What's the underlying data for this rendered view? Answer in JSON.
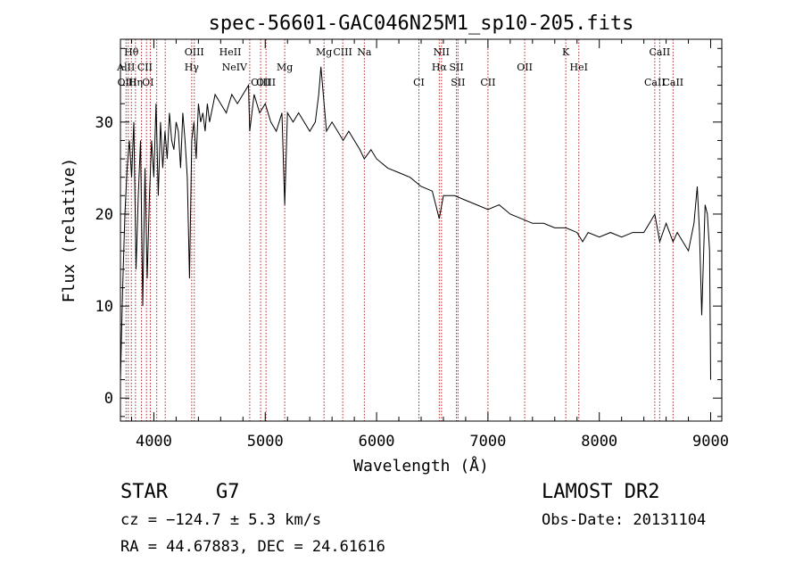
{
  "chart_data": {
    "type": "line",
    "title": "spec-56601-GAC046N25M1_sp10-205.fits",
    "xlabel": "Wavelength (Å)",
    "ylabel": "Flux (relative)",
    "xlim": [
      3700,
      9100
    ],
    "ylim": [
      -2.5,
      39
    ],
    "x_ticks": [
      4000,
      5000,
      6000,
      7000,
      8000,
      9000
    ],
    "y_ticks": [
      0,
      10,
      20,
      30
    ],
    "line_color": "#000000",
    "marker_color": "#b22222",
    "spectrum": {
      "x": [
        3700,
        3720,
        3740,
        3760,
        3780,
        3800,
        3820,
        3840,
        3860,
        3880,
        3900,
        3920,
        3940,
        3960,
        3980,
        4000,
        4020,
        4040,
        4060,
        4080,
        4100,
        4120,
        4140,
        4160,
        4180,
        4200,
        4220,
        4240,
        4260,
        4280,
        4300,
        4320,
        4340,
        4360,
        4380,
        4400,
        4420,
        4440,
        4460,
        4480,
        4500,
        4550,
        4600,
        4650,
        4700,
        4750,
        4800,
        4850,
        4861,
        4900,
        4950,
        5000,
        5050,
        5100,
        5150,
        5175,
        5200,
        5250,
        5300,
        5350,
        5400,
        5450,
        5480,
        5500,
        5550,
        5600,
        5650,
        5700,
        5750,
        5800,
        5850,
        5890,
        5950,
        6000,
        6100,
        6200,
        6300,
        6400,
        6500,
        6563,
        6600,
        6700,
        6800,
        6900,
        7000,
        7100,
        7200,
        7300,
        7400,
        7500,
        7600,
        7700,
        7800,
        7850,
        7900,
        8000,
        8100,
        8200,
        8300,
        8400,
        8450,
        8498,
        8542,
        8600,
        8662,
        8700,
        8750,
        8800,
        8850,
        8880,
        8900,
        8920,
        8950,
        8970,
        8990,
        9000
      ],
      "y": [
        2,
        12,
        20,
        25,
        28,
        24,
        30,
        14,
        22,
        28,
        10,
        25,
        13,
        22,
        28,
        24,
        32,
        22,
        30,
        25,
        29,
        26,
        31,
        28,
        27,
        30,
        29,
        25,
        31,
        28,
        24,
        13,
        28,
        30,
        26,
        32,
        30,
        31,
        29,
        32,
        30,
        33,
        32,
        31,
        33,
        32,
        33,
        34,
        29,
        33,
        31,
        32,
        30,
        29,
        31,
        21,
        31,
        30,
        31,
        30,
        29,
        30,
        33,
        36,
        29,
        30,
        29,
        28,
        29,
        28,
        27,
        26,
        27,
        26,
        25,
        24.5,
        24,
        23,
        22.5,
        19.5,
        22,
        22,
        21.5,
        21,
        20.5,
        21,
        20,
        19.5,
        19,
        19,
        18.5,
        18.5,
        18,
        17,
        18,
        17.5,
        18,
        17.5,
        18,
        18,
        19,
        20,
        17,
        19,
        17,
        18,
        17,
        16,
        19,
        23,
        18,
        9,
        21,
        20,
        16,
        2
      ]
    },
    "line_ids": [
      {
        "label": "Hθ",
        "wl": 3798,
        "row": 0
      },
      {
        "label": "AlII",
        "wl": 3750,
        "row": 1
      },
      {
        "label": "OIII",
        "wl": 3760,
        "row": 2
      },
      {
        "label": "Hη",
        "wl": 3835,
        "row": 2
      },
      {
        "label": "CII",
        "wl": 3920,
        "row": 1
      },
      {
        "label": "OI",
        "wl": 3947,
        "row": 2
      },
      {
        "label": "OIII",
        "wl": 4363,
        "row": 0
      },
      {
        "label": "Hγ",
        "wl": 4340,
        "row": 1
      },
      {
        "label": "HeII",
        "wl": 4686,
        "row": 0
      },
      {
        "label": "NeIV",
        "wl": 4724,
        "row": 1
      },
      {
        "label": "OIII",
        "wl": 4959,
        "row": 2
      },
      {
        "label": "OIII",
        "wl": 5007,
        "row": 2
      },
      {
        "label": "Mg",
        "wl": 5175,
        "row": 1
      },
      {
        "label": "Mg",
        "wl": 5528,
        "row": 0
      },
      {
        "label": "CIII",
        "wl": 5696,
        "row": 0
      },
      {
        "label": "Na",
        "wl": 5890,
        "row": 0
      },
      {
        "label": "CI",
        "wl": 6380,
        "row": 2
      },
      {
        "label": "NII",
        "wl": 6583,
        "row": 0
      },
      {
        "label": "Hα",
        "wl": 6563,
        "row": 1
      },
      {
        "label": "SII",
        "wl": 6717,
        "row": 1
      },
      {
        "label": "SII",
        "wl": 6731,
        "row": 2
      },
      {
        "label": "CII",
        "wl": 7000,
        "row": 2
      },
      {
        "label": "OII",
        "wl": 7330,
        "row": 1
      },
      {
        "label": "HeI",
        "wl": 7816,
        "row": 1
      },
      {
        "label": "K",
        "wl": 7699,
        "row": 0
      },
      {
        "label": "CaII",
        "wl": 8542,
        "row": 0
      },
      {
        "label": "CaII",
        "wl": 8498,
        "row": 2
      },
      {
        "label": "CaII",
        "wl": 8662,
        "row": 2
      }
    ],
    "marker_lines": [
      3750,
      3770,
      3798,
      3835,
      3889,
      3934,
      3968,
      4026,
      4102,
      4340,
      4363,
      4861,
      4959,
      5007,
      5175,
      5528,
      5696,
      5890,
      6380,
      6563,
      6583,
      6717,
      6731,
      7000,
      7330,
      7816,
      7699,
      8498,
      8542,
      8662
    ]
  },
  "info": {
    "class": "STAR",
    "subclass": "G7",
    "survey": "LAMOST DR2",
    "cz": "cz = −124.7 ± 5.3 km/s",
    "obs_date": "Obs-Date: 20131104",
    "coords": "RA =  44.67883, DEC =  24.61616"
  }
}
